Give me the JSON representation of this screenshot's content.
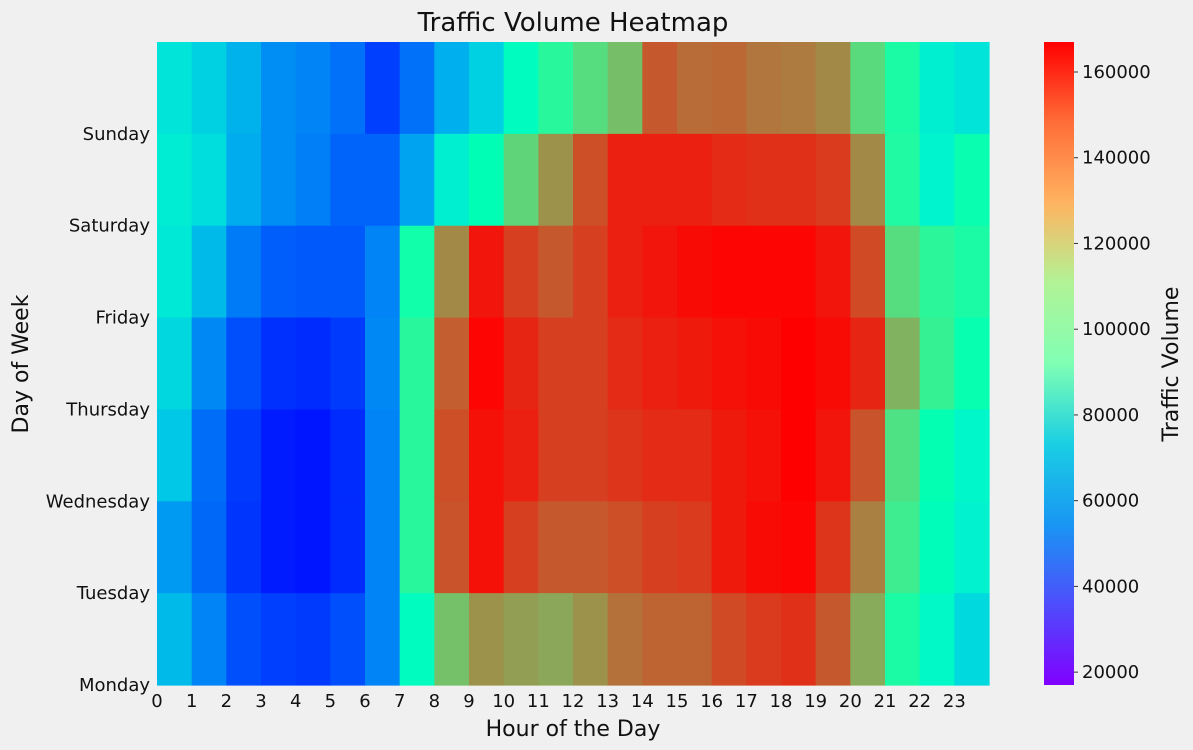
{
  "chart_data": {
    "type": "heatmap",
    "title": "Traffic Volume Heatmap",
    "xlabel": "Hour of the Day",
    "ylabel": "Day of Week",
    "x_ticks": [
      "0",
      "1",
      "2",
      "3",
      "4",
      "5",
      "6",
      "7",
      "8",
      "9",
      "10",
      "11",
      "12",
      "13",
      "14",
      "15",
      "16",
      "17",
      "18",
      "19",
      "20",
      "21",
      "22",
      "23"
    ],
    "y_ticks": [
      "Monday",
      "Tuesday",
      "Wednesday",
      "Thursday",
      "Friday",
      "Saturday",
      "Sunday"
    ],
    "colorbar": {
      "label": "Traffic Volume",
      "min": 17000,
      "max": 167000,
      "ticks": [
        "20000",
        "40000",
        "60000",
        "80000",
        "100000",
        "120000",
        "140000",
        "160000"
      ],
      "colormap": "rainbow"
    },
    "rows_top_to_bottom": [
      [
        70000,
        63000,
        54000,
        45000,
        43000,
        39000,
        29000,
        39000,
        53000,
        63000,
        86000,
        104000,
        117000,
        127000,
        150000,
        146000,
        147000,
        144000,
        143000,
        140000,
        118000,
        100000,
        75000,
        70000
      ],
      [
        74000,
        67000,
        52000,
        45000,
        42000,
        36000,
        36000,
        50000,
        75000,
        92000,
        120000,
        138000,
        152000,
        161000,
        161000,
        161000,
        159000,
        158000,
        158000,
        156000,
        140000,
        101000,
        78000,
        95000
      ],
      [
        72000,
        56000,
        41000,
        35000,
        34000,
        34000,
        43000,
        97000,
        140000,
        163000,
        155000,
        150000,
        155000,
        161000,
        163000,
        165000,
        166000,
        166000,
        166000,
        163000,
        153000,
        117000,
        105000,
        100000
      ],
      [
        65000,
        44000,
        32000,
        26000,
        25000,
        28000,
        44000,
        104000,
        149000,
        166000,
        160000,
        155000,
        155000,
        159000,
        161000,
        162000,
        164000,
        165000,
        167000,
        165000,
        160000,
        130000,
        108000,
        94000
      ],
      [
        60000,
        38000,
        28000,
        22000,
        21000,
        25000,
        43000,
        104000,
        152000,
        164000,
        161000,
        155000,
        155000,
        157000,
        159000,
        159000,
        162000,
        164000,
        167000,
        163000,
        151000,
        115000,
        93000,
        80000
      ],
      [
        48000,
        37000,
        27000,
        22000,
        21000,
        25000,
        43000,
        104000,
        151000,
        164000,
        155000,
        150000,
        150000,
        152000,
        155000,
        156000,
        162000,
        165000,
        166000,
        157000,
        142000,
        110000,
        89000,
        77000
      ],
      [
        56000,
        43000,
        32000,
        29000,
        28000,
        32000,
        43000,
        86000,
        126000,
        138000,
        135000,
        133000,
        138000,
        145000,
        148000,
        148000,
        153000,
        156000,
        158000,
        150000,
        132000,
        100000,
        82000,
        66000
      ]
    ]
  }
}
